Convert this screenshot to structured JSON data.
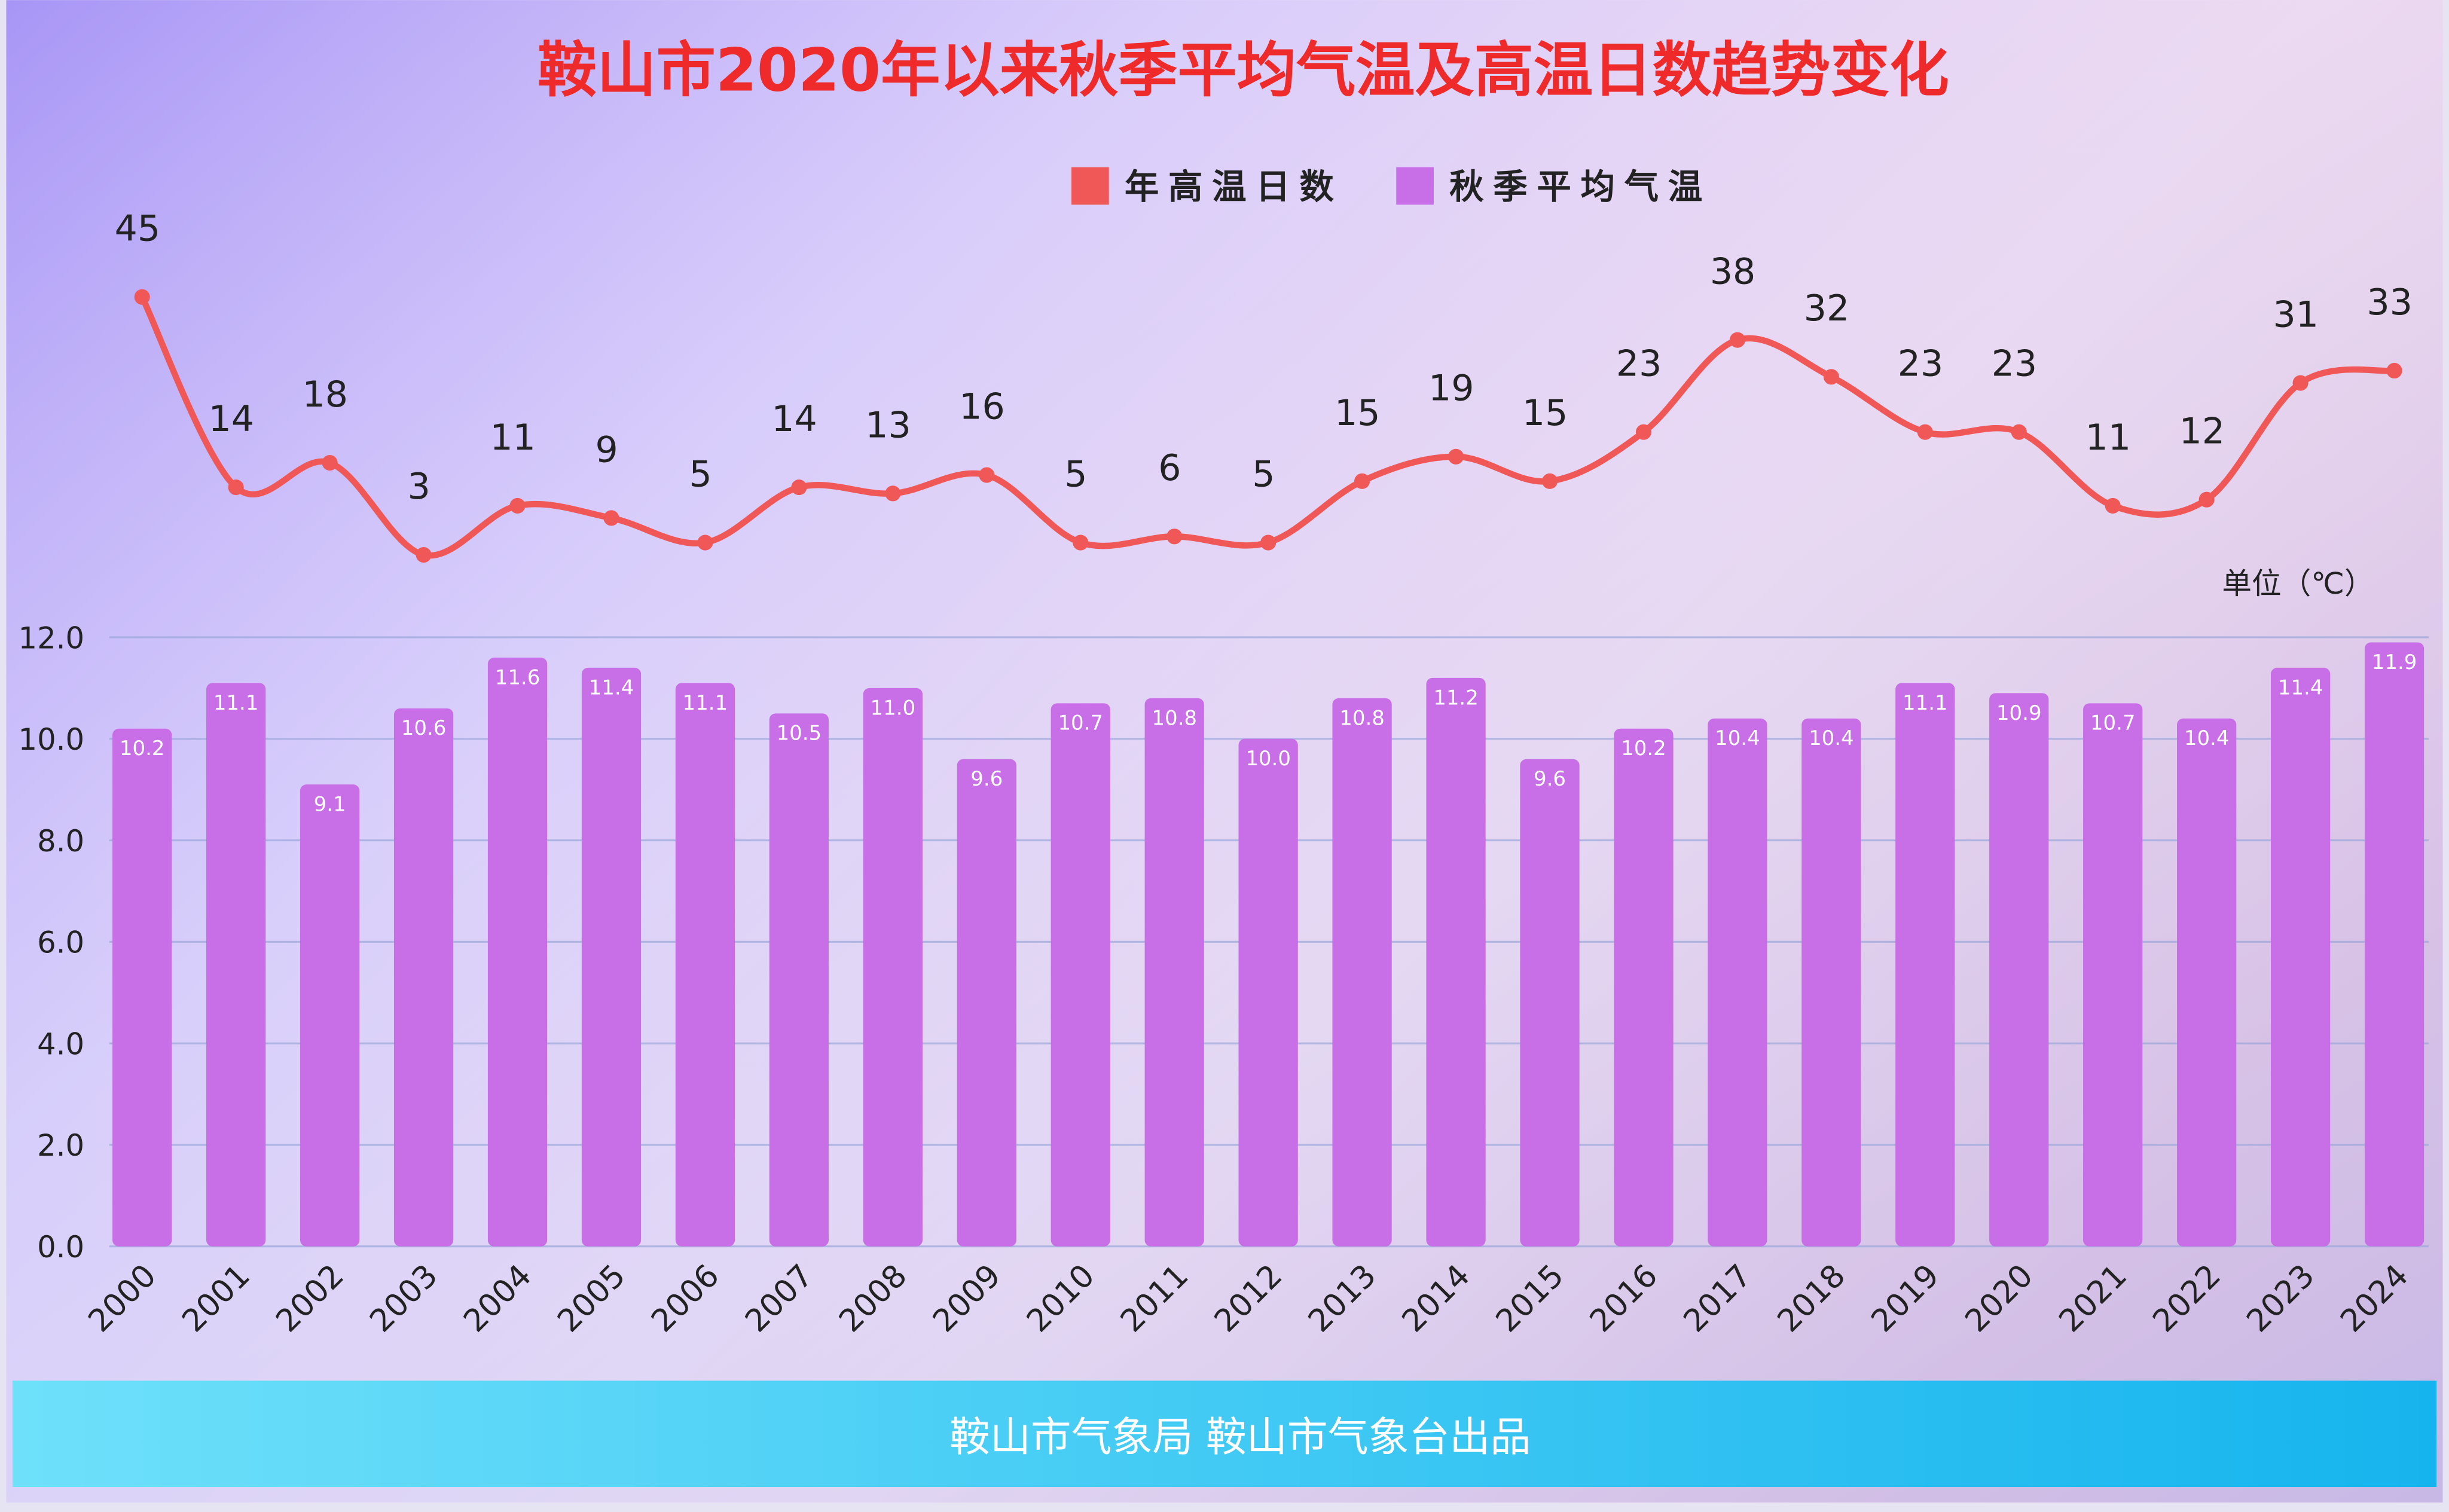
{
  "chart_data": {
    "type": "bar",
    "title": "鞍山市2020年以来秋季平均气温及高温日数趋势变化",
    "y_label": "单位（℃）",
    "source": "鞍山市气象局 鞍山市气象台出品",
    "categories": [
      "2000",
      "2001",
      "2002",
      "2003",
      "2004",
      "2005",
      "2006",
      "2007",
      "2008",
      "2009",
      "2010",
      "2011",
      "2012",
      "2013",
      "2014",
      "2015",
      "2016",
      "2017",
      "2018",
      "2019",
      "2020",
      "2021",
      "2022",
      "2023",
      "2024"
    ],
    "series": [
      {
        "name": "年高温日数",
        "type": "line",
        "axis": "y2",
        "color": "#f05858",
        "values": [
          45,
          14,
          18,
          3,
          11,
          9,
          5,
          14,
          13,
          16,
          5,
          6,
          5,
          15,
          19,
          15,
          23,
          38,
          32,
          23,
          23,
          11,
          12,
          31,
          33
        ]
      },
      {
        "name": "秋季平均气温",
        "type": "bar",
        "color": "#c86ee6",
        "values": [
          10.2,
          11.1,
          9.1,
          10.6,
          11.6,
          11.4,
          11.1,
          10.5,
          11.0,
          9.6,
          10.7,
          10.8,
          10.0,
          10.8,
          11.2,
          9.6,
          10.2,
          10.4,
          10.4,
          11.1,
          10.9,
          10.7,
          10.4,
          11.4,
          11.9
        ],
        "value_labels": [
          "10.2",
          "11.1",
          "9.1",
          "10.6",
          "11.6",
          "11.4",
          "11.1",
          "10.5",
          "11.0",
          "9.6",
          "10.7",
          "10.8",
          "10.0",
          "10.8",
          "11.2",
          "9.6",
          "10.2",
          "10.4",
          "10.4",
          "11.1",
          "10.9",
          "10.7",
          "10.4",
          "11.4",
          "11.9"
        ]
      }
    ],
    "ylim": [
      0,
      12
    ],
    "yticks": [
      {
        "value": 0,
        "label": "0.0"
      },
      {
        "value": 2,
        "label": "2.0"
      },
      {
        "value": 4,
        "label": "4.0"
      },
      {
        "value": 6,
        "label": "6.0"
      },
      {
        "value": 8,
        "label": "8.0"
      },
      {
        "value": 10,
        "label": "10.0"
      },
      {
        "value": 12,
        "label": "12.0"
      }
    ],
    "y2lim": [
      0,
      58
    ],
    "grid": true,
    "legend": "top"
  }
}
